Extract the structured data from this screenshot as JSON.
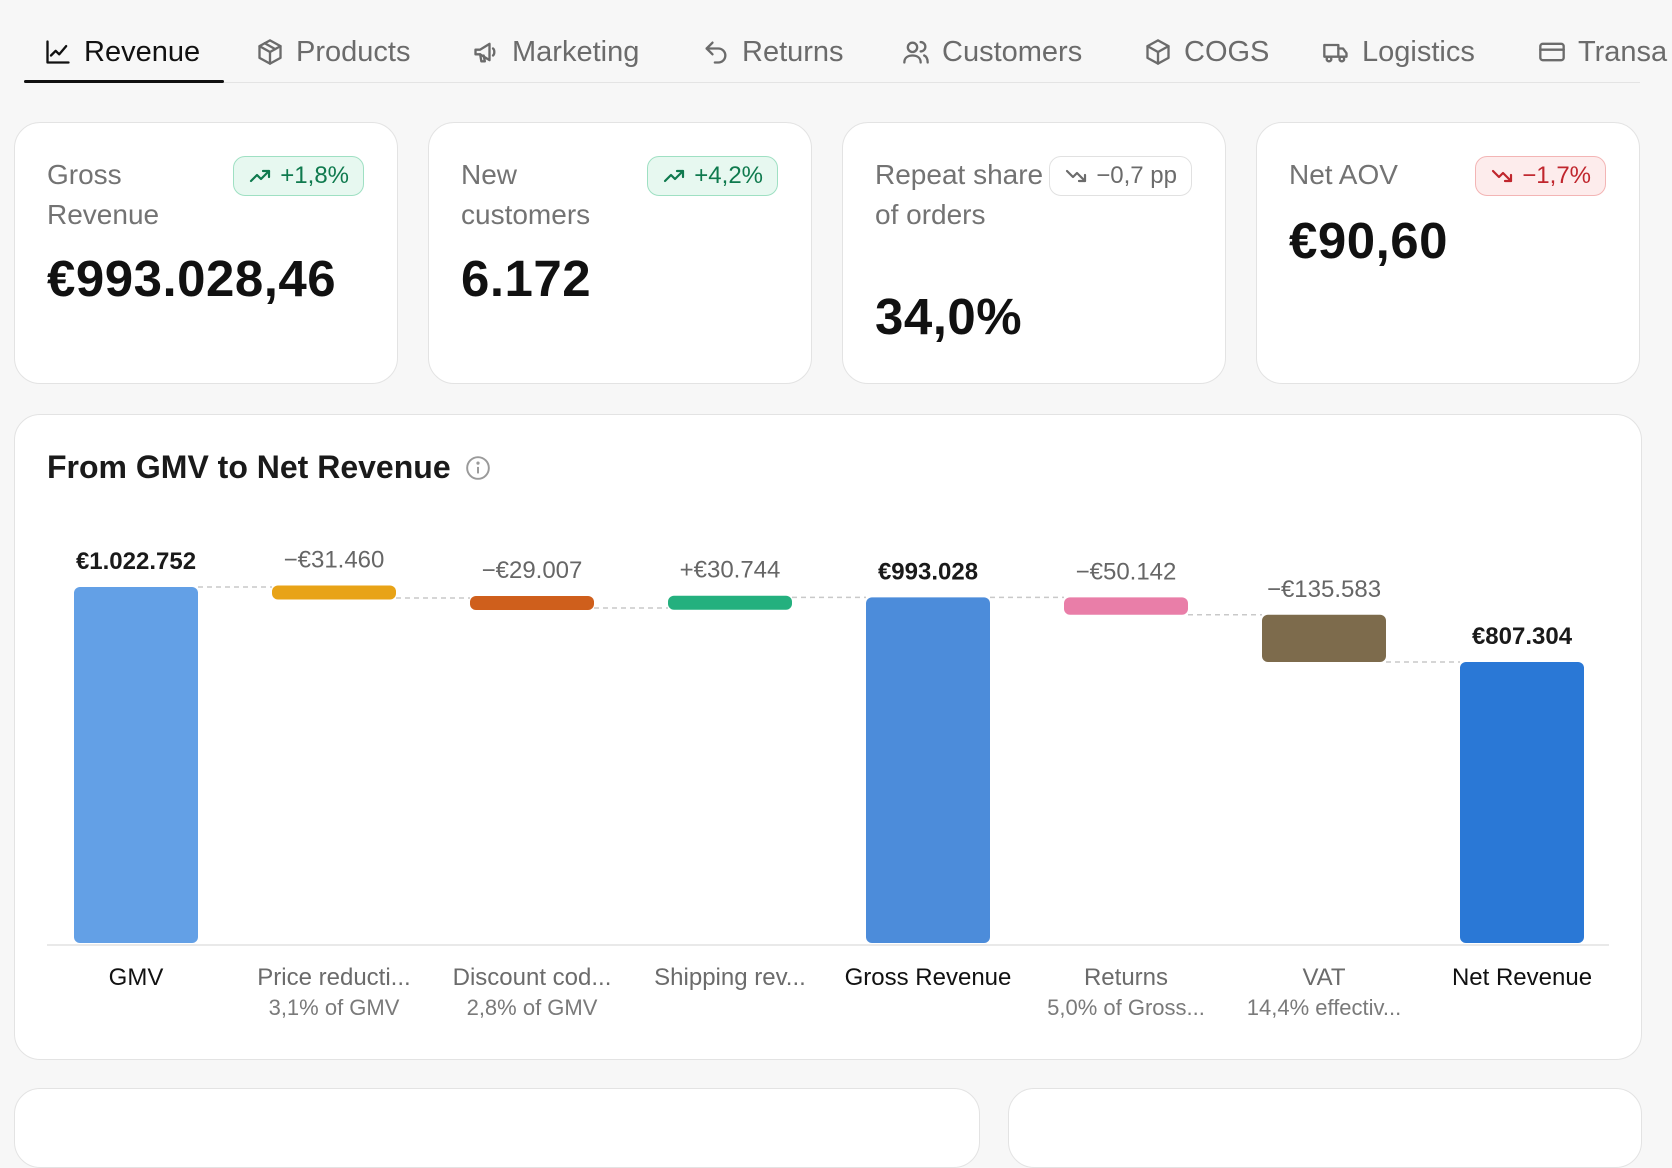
{
  "tabs": [
    {
      "label": "Revenue",
      "icon": "line-chart-icon",
      "active": true
    },
    {
      "label": "Products",
      "icon": "boxes-icon",
      "active": false
    },
    {
      "label": "Marketing",
      "icon": "megaphone-icon",
      "active": false
    },
    {
      "label": "Returns",
      "icon": "undo-icon",
      "active": false
    },
    {
      "label": "Customers",
      "icon": "users-icon",
      "active": false
    },
    {
      "label": "COGS",
      "icon": "package-icon",
      "active": false
    },
    {
      "label": "Logistics",
      "icon": "truck-icon",
      "active": false
    },
    {
      "label": "Transa",
      "icon": "card-icon",
      "active": false
    }
  ],
  "kpis": [
    {
      "label": "Gross Revenue",
      "value": "€993.028,46",
      "change": "+1,8%",
      "trend": "up"
    },
    {
      "label": "New customers",
      "value": "6.172",
      "change": "+4,2%",
      "trend": "up"
    },
    {
      "label": "Repeat share of orders",
      "value": "34,0%",
      "change": "−0,7 pp",
      "trend": "down-neutral"
    },
    {
      "label": "Net AOV",
      "value": "€90,60",
      "change": "−1,7%",
      "trend": "down"
    }
  ],
  "waterfall": {
    "title": "From GMV to Net Revenue",
    "info_icon": "info-icon"
  },
  "colors": {
    "gmv": "#63a0e6",
    "price_reductions": "#e8a317",
    "discount_codes": "#cf5f1c",
    "shipping": "#24b07e",
    "gross_revenue": "#4c8cda",
    "returns": "#e97ea8",
    "vat": "#7d6b4c",
    "net_revenue": "#2a78d6",
    "positive_badge": "#0f7a4e",
    "negative_badge": "#c0262d"
  },
  "chart_data": {
    "type": "bar",
    "subtype": "waterfall",
    "title": "From GMV to Net Revenue",
    "ylim": [
      0,
      1022752
    ],
    "steps": [
      {
        "label": "GMV",
        "sublabel": "",
        "value": 1022752,
        "kind": "total",
        "display": "€1.022.752",
        "color_key": "gmv"
      },
      {
        "label": "Price reducti...",
        "sublabel": "3,1% of GMV",
        "value": -31460,
        "kind": "delta",
        "display": "−€31.460",
        "color_key": "price_reductions"
      },
      {
        "label": "Discount cod...",
        "sublabel": "2,8% of GMV",
        "value": -29007,
        "kind": "delta",
        "display": "−€29.007",
        "color_key": "discount_codes"
      },
      {
        "label": "Shipping rev...",
        "sublabel": "",
        "value": 30744,
        "kind": "delta",
        "display": "+€30.744",
        "color_key": "shipping"
      },
      {
        "label": "Gross Revenue",
        "sublabel": "",
        "value": 993028,
        "kind": "total",
        "display": "€993.028",
        "color_key": "gross_revenue"
      },
      {
        "label": "Returns",
        "sublabel": "5,0% of Gross...",
        "value": -50142,
        "kind": "delta",
        "display": "−€50.142",
        "color_key": "returns"
      },
      {
        "label": "VAT",
        "sublabel": "14,4% effectiv...",
        "value": -135583,
        "kind": "delta",
        "display": "−€135.583",
        "color_key": "vat"
      },
      {
        "label": "Net Revenue",
        "sublabel": "",
        "value": 807304,
        "kind": "total",
        "display": "€807.304",
        "color_key": "net_revenue"
      }
    ]
  }
}
